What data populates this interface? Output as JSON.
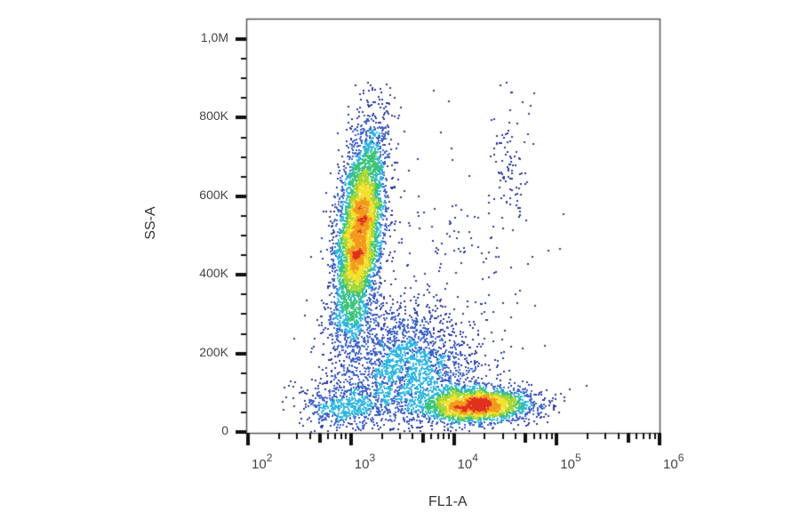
{
  "chart_data": {
    "type": "scatter",
    "subtype": "flow-cytometry-density-dot-plot",
    "title": "",
    "xlabel": "FL1-A",
    "ylabel": "SS-A",
    "xscale": "log",
    "xlim": [
      100,
      1000000
    ],
    "ylim": [
      0,
      1050000
    ],
    "x_ticks": [
      {
        "value": 100,
        "label_base": "10",
        "label_exp": "2"
      },
      {
        "value": 1000,
        "label_base": "10",
        "label_exp": "3"
      },
      {
        "value": 10000,
        "label_base": "10",
        "label_exp": "4"
      },
      {
        "value": 100000,
        "label_base": "10",
        "label_exp": "5"
      },
      {
        "value": 1000000,
        "label_base": "10",
        "label_exp": "6"
      }
    ],
    "y_ticks": [
      {
        "value": 0,
        "label": "0"
      },
      {
        "value": 200000,
        "label": "200K"
      },
      {
        "value": 400000,
        "label": "400K"
      },
      {
        "value": 600000,
        "label": "600K"
      },
      {
        "value": 800000,
        "label": "800K"
      },
      {
        "value": 1000000,
        "label": "1,0M"
      }
    ],
    "grid": false,
    "legend": null,
    "colormap": [
      "#2b3a9c",
      "#3b5fc4",
      "#2fb6e0",
      "#3cc47a",
      "#a8d632",
      "#f2e02a",
      "#f39a1e",
      "#e0301e"
    ],
    "populations": [
      {
        "name": "high-SSC low-FL1 cluster",
        "x_center_log": 3.08,
        "y_center": 510000,
        "x_spread_log": 0.12,
        "y_spread": 120000,
        "tilt": 0.55,
        "count": 5200,
        "density_peak": "red"
      },
      {
        "name": "high-FL1 low-SSC cluster",
        "x_center_log": 4.2,
        "y_center": 70000,
        "x_spread_log": 0.28,
        "y_spread": 22000,
        "tilt": 0.05,
        "count": 2600,
        "density_peak": "yellow-orange"
      },
      {
        "name": "diffuse mid cloud",
        "x_center_log": 3.55,
        "y_center": 170000,
        "x_spread_log": 0.35,
        "y_spread": 75000,
        "tilt": -0.1,
        "count": 2200,
        "density_peak": "blue"
      },
      {
        "name": "low-SSC low-FL1 tail",
        "x_center_log": 2.95,
        "y_center": 70000,
        "x_spread_log": 0.22,
        "y_spread": 30000,
        "tilt": 0.0,
        "count": 600,
        "density_peak": "blue"
      },
      {
        "name": "sparse high-FL1 high-SSC events",
        "x_center_log": 4.55,
        "y_center": 700000,
        "x_spread_log": 0.1,
        "y_spread": 90000,
        "tilt": 0.0,
        "count": 90,
        "density_peak": "blue"
      },
      {
        "name": "scattered background",
        "x_center_log": 4.0,
        "y_center": 420000,
        "x_spread_log": 0.45,
        "y_spread": 160000,
        "tilt": 0.0,
        "count": 160,
        "density_peak": "blue"
      }
    ]
  },
  "axes": {
    "x_title": "FL1-A",
    "y_title": "SS-A"
  }
}
